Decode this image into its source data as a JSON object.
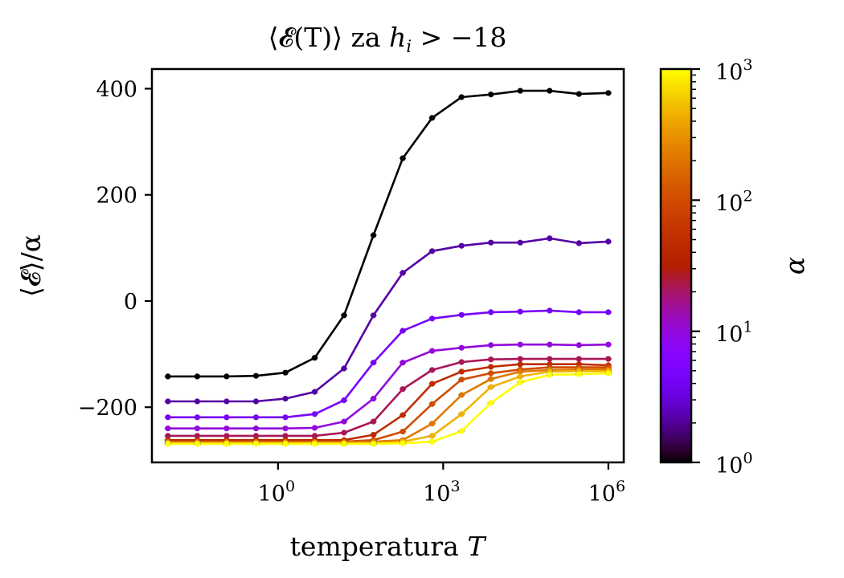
{
  "chart_data": {
    "type": "line",
    "title": "⟨𝓔(T)⟩ za h_i > −18",
    "title_parts": {
      "main": "⟨𝓔(T)⟩ za ",
      "var": "h",
      "sub": "i",
      "rest": " > −18"
    },
    "xlabel": "temperatura T",
    "xlabel_parts": {
      "text": "temperatura ",
      "var": "T"
    },
    "ylabel": "⟨𝓔⟩/α",
    "xscale": "log",
    "xlim_log10": [
      -2.29,
      6.28
    ],
    "ylim": [
      -304,
      437
    ],
    "x_log10": [
      -2.0,
      -1.4667,
      -0.9333,
      -0.4,
      0.1333,
      0.6667,
      1.2,
      1.7333,
      2.2667,
      2.8,
      3.3333,
      3.8667,
      4.4,
      4.9333,
      5.4667,
      6.0
    ],
    "xticks": [
      {
        "log10": 0,
        "base": "10",
        "exp": "0"
      },
      {
        "log10": 3,
        "base": "10",
        "exp": "3"
      },
      {
        "log10": 6,
        "base": "10",
        "exp": "6"
      }
    ],
    "yticks": [
      {
        "value": 400,
        "label": "400"
      },
      {
        "value": 200,
        "label": "200"
      },
      {
        "value": 0,
        "label": "0"
      },
      {
        "value": -200,
        "label": "−200"
      }
    ],
    "grid": false,
    "series": [
      {
        "name": "α=1",
        "alpha": 1,
        "color": "#000000",
        "values": [
          -142,
          -142,
          -142,
          -141,
          -135,
          -107,
          -27,
          124,
          269,
          345,
          384,
          389,
          396,
          396,
          390,
          392
        ]
      },
      {
        "name": "α=2.15",
        "alpha": 2.15,
        "color": "#5500a4",
        "values": [
          -189,
          -189,
          -189,
          -189,
          -184,
          -171,
          -127,
          -27,
          53,
          94,
          104,
          110,
          110,
          118,
          109,
          112
        ]
      },
      {
        "name": "α=4.64",
        "alpha": 4.64,
        "color": "#7803fb",
        "values": [
          -219,
          -219,
          -219,
          -219,
          -219,
          -213,
          -187,
          -116,
          -56,
          -33,
          -26,
          -21,
          -20,
          -18,
          -21,
          -21
        ]
      },
      {
        "name": "α=10",
        "alpha": 10,
        "color": "#9309dd",
        "values": [
          -240,
          -240,
          -240,
          -240,
          -240,
          -239,
          -227,
          -184,
          -116,
          -94,
          -88,
          -83,
          -82,
          -82,
          -83,
          -82
        ]
      },
      {
        "name": "α=21.5",
        "alpha": 21.5,
        "color": "#aa1657",
        "values": [
          -254,
          -254,
          -254,
          -254,
          -254,
          -254,
          -248,
          -227,
          -166,
          -130,
          -115,
          -110,
          -109,
          -109,
          -109,
          -109
        ]
      },
      {
        "name": "α=46.4",
        "alpha": 46.4,
        "color": "#be2c00",
        "values": [
          -262,
          -262,
          -262,
          -262,
          -262,
          -262,
          -262,
          -252,
          -215,
          -156,
          -133,
          -124,
          -119,
          -119,
          -119,
          -121
        ]
      },
      {
        "name": "α=100",
        "alpha": 100,
        "color": "#d04c00",
        "values": [
          -265,
          -265,
          -265,
          -265,
          -265,
          -265,
          -265,
          -262,
          -246,
          -194,
          -148,
          -136,
          -129,
          -125,
          -125,
          -125
        ]
      },
      {
        "name": "α=215",
        "alpha": 215,
        "color": "#e17800",
        "values": [
          -266,
          -266,
          -266,
          -266,
          -266,
          -266,
          -266,
          -265,
          -262,
          -231,
          -177,
          -147,
          -133,
          -130,
          -129,
          -129
        ]
      },
      {
        "name": "α=464",
        "alpha": 464,
        "color": "#f0b300",
        "values": [
          -268,
          -268,
          -268,
          -268,
          -268,
          -268,
          -268,
          -268,
          -265,
          -254,
          -213,
          -162,
          -142,
          -133,
          -132,
          -132
        ]
      },
      {
        "name": "α=1000",
        "alpha": 1000,
        "color": "#ffff00",
        "values": [
          -269,
          -269,
          -269,
          -269,
          -269,
          -269,
          -269,
          -269,
          -268,
          -265,
          -245,
          -192,
          -153,
          -139,
          -138,
          -136
        ]
      }
    ],
    "colorbar": {
      "label": "α",
      "scale": "log",
      "range": [
        1,
        1000
      ],
      "colormap": "gnuplot",
      "ticks": [
        {
          "log10": 0,
          "base": "10",
          "exp": "0"
        },
        {
          "log10": 1,
          "base": "10",
          "exp": "1"
        },
        {
          "log10": 2,
          "base": "10",
          "exp": "2"
        },
        {
          "log10": 3,
          "base": "10",
          "exp": "3"
        }
      ]
    }
  }
}
